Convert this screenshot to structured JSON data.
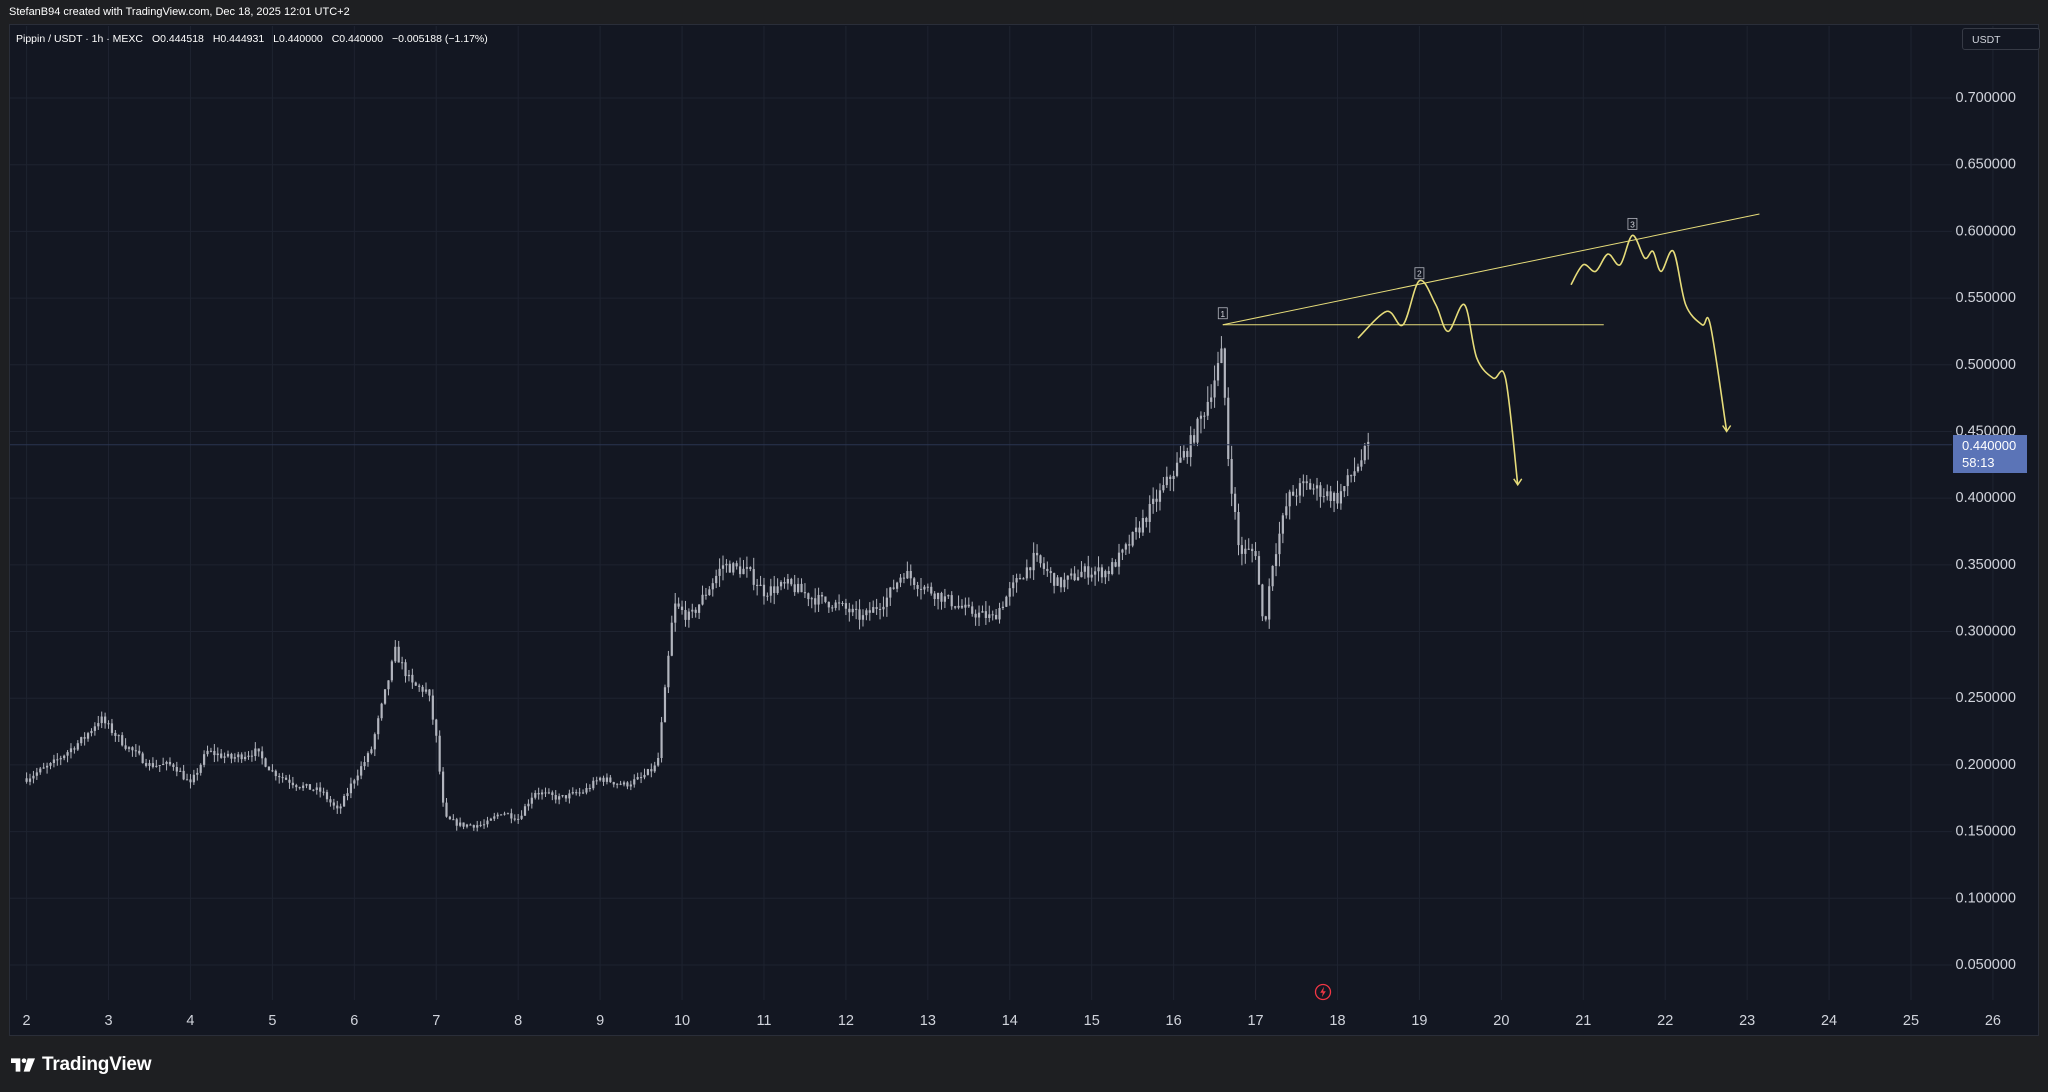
{
  "header": {
    "attribution": "StefanB94 created with TradingView.com, Dec 18, 2025 12:01 UTC+2"
  },
  "legend": {
    "symbol": "Pippin / USDT · 1h · MEXC",
    "open": "O0.444518",
    "high": "H0.444931",
    "low": "L0.440000",
    "close": "C0.440000",
    "change": "−0.005188 (−1.17%)"
  },
  "currency_button": "USDT",
  "last_price": {
    "value": "0.440000",
    "countdown": "58:13"
  },
  "brand": {
    "name": "TradingView"
  },
  "colors": {
    "background": "#131722",
    "grid": "#1e2330",
    "candles": "#b2b5be",
    "drawing": "#e6dc7a",
    "price_label": "#5b74b7"
  },
  "chart_data": {
    "type": "line",
    "title": "Pippin / USDT · 1h · MEXC",
    "xlabel": "",
    "ylabel": "",
    "x_ticks": [
      "2",
      "3",
      "4",
      "5",
      "6",
      "7",
      "8",
      "9",
      "10",
      "11",
      "12",
      "13",
      "14",
      "15",
      "16",
      "17",
      "18",
      "19",
      "20",
      "21",
      "22",
      "23",
      "24",
      "25",
      "26"
    ],
    "y_ticks": [
      "0.700000",
      "0.650000",
      "0.600000",
      "0.550000",
      "0.500000",
      "0.450000",
      "0.400000",
      "0.350000",
      "0.300000",
      "0.250000",
      "0.200000",
      "0.150000",
      "0.100000",
      "0.050000"
    ],
    "ylim": [
      0.0,
      0.74
    ],
    "xlim": [
      1.8,
      26.2
    ],
    "grid": true,
    "series": [
      {
        "values": [
          [
            2.0,
            0.19
          ],
          [
            2.3,
            0.2
          ],
          [
            2.7,
            0.22
          ],
          [
            2.9,
            0.235
          ],
          [
            3.2,
            0.215
          ],
          [
            3.5,
            0.2
          ],
          [
            3.8,
            0.2
          ],
          [
            4.0,
            0.185
          ],
          [
            4.2,
            0.21
          ],
          [
            4.5,
            0.205
          ],
          [
            4.8,
            0.21
          ],
          [
            5.0,
            0.195
          ],
          [
            5.3,
            0.185
          ],
          [
            5.6,
            0.18
          ],
          [
            5.8,
            0.165
          ],
          [
            6.0,
            0.19
          ],
          [
            6.2,
            0.21
          ],
          [
            6.4,
            0.26
          ],
          [
            6.5,
            0.285
          ],
          [
            6.7,
            0.26
          ],
          [
            6.9,
            0.255
          ],
          [
            7.0,
            0.22
          ],
          [
            7.1,
            0.16
          ],
          [
            7.3,
            0.155
          ],
          [
            7.6,
            0.155
          ],
          [
            7.8,
            0.165
          ],
          [
            8.0,
            0.16
          ],
          [
            8.2,
            0.18
          ],
          [
            8.5,
            0.175
          ],
          [
            8.8,
            0.18
          ],
          [
            9.0,
            0.19
          ],
          [
            9.3,
            0.185
          ],
          [
            9.5,
            0.19
          ],
          [
            9.7,
            0.2
          ],
          [
            9.8,
            0.26
          ],
          [
            9.9,
            0.32
          ],
          [
            10.1,
            0.31
          ],
          [
            10.3,
            0.33
          ],
          [
            10.5,
            0.35
          ],
          [
            10.8,
            0.345
          ],
          [
            11.0,
            0.33
          ],
          [
            11.3,
            0.335
          ],
          [
            11.6,
            0.325
          ],
          [
            11.9,
            0.32
          ],
          [
            12.2,
            0.31
          ],
          [
            12.5,
            0.325
          ],
          [
            12.7,
            0.345
          ],
          [
            12.9,
            0.335
          ],
          [
            13.2,
            0.325
          ],
          [
            13.5,
            0.315
          ],
          [
            13.8,
            0.31
          ],
          [
            14.0,
            0.33
          ],
          [
            14.3,
            0.355
          ],
          [
            14.6,
            0.335
          ],
          [
            14.9,
            0.345
          ],
          [
            15.2,
            0.345
          ],
          [
            15.4,
            0.36
          ],
          [
            15.6,
            0.38
          ],
          [
            15.8,
            0.4
          ],
          [
            16.0,
            0.42
          ],
          [
            16.2,
            0.44
          ],
          [
            16.4,
            0.47
          ],
          [
            16.6,
            0.51
          ],
          [
            16.65,
            0.44
          ],
          [
            16.8,
            0.36
          ],
          [
            17.0,
            0.36
          ],
          [
            17.1,
            0.3
          ],
          [
            17.2,
            0.35
          ],
          [
            17.4,
            0.4
          ],
          [
            17.6,
            0.41
          ],
          [
            17.8,
            0.405
          ],
          [
            18.0,
            0.4
          ],
          [
            18.2,
            0.42
          ],
          [
            18.4,
            0.44
          ]
        ]
      }
    ],
    "annotations": {
      "labels": [
        "1",
        "2",
        "3"
      ],
      "points": [
        [
          16.6,
          0.53
        ],
        [
          19.0,
          0.56
        ],
        [
          21.6,
          0.597
        ]
      ],
      "trend_line": [
        [
          16.6,
          0.53
        ],
        [
          23.15,
          0.613
        ]
      ],
      "horizontal_line": {
        "y": 0.53,
        "x": [
          16.6,
          21.25
        ]
      },
      "projection_1": [
        [
          18.25,
          0.52
        ],
        [
          18.6,
          0.54
        ],
        [
          18.8,
          0.53
        ],
        [
          19.0,
          0.563
        ],
        [
          19.2,
          0.545
        ],
        [
          19.35,
          0.525
        ],
        [
          19.55,
          0.545
        ],
        [
          19.7,
          0.505
        ],
        [
          19.9,
          0.49
        ],
        [
          20.05,
          0.49
        ],
        [
          20.2,
          0.41
        ]
      ],
      "projection_2": [
        [
          20.85,
          0.56
        ],
        [
          21.0,
          0.575
        ],
        [
          21.15,
          0.57
        ],
        [
          21.3,
          0.583
        ],
        [
          21.45,
          0.575
        ],
        [
          21.6,
          0.597
        ],
        [
          21.75,
          0.58
        ],
        [
          21.85,
          0.585
        ],
        [
          21.95,
          0.57
        ],
        [
          22.1,
          0.585
        ],
        [
          22.25,
          0.545
        ],
        [
          22.45,
          0.53
        ],
        [
          22.55,
          0.53
        ],
        [
          22.75,
          0.45
        ]
      ]
    }
  }
}
